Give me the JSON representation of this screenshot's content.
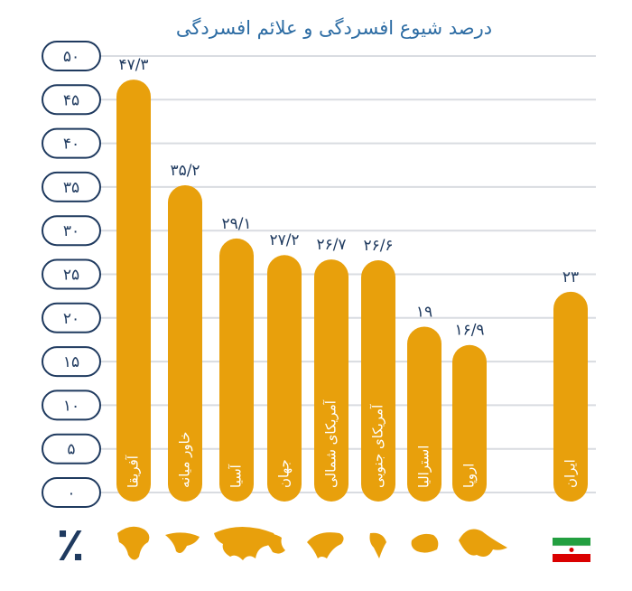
{
  "chart_data": {
    "type": "bar",
    "title": "درصد شیوع افسردگی و علائم افسردگی",
    "y_unit": "٪",
    "categories": [
      "آفریقا",
      "خاور میانه",
      "آسیا",
      "جهان",
      "آمریکای شمالی",
      "آمریکای جنوبی",
      "استرالیا",
      "اروپا",
      "ایران"
    ],
    "values": [
      47.3,
      35.2,
      29.1,
      27.2,
      26.7,
      26.6,
      19,
      16.9,
      23
    ],
    "value_labels": [
      "۴۷/۳",
      "۳۵/۲",
      "۲۹/۱",
      "۲۷/۲",
      "۲۶/۷",
      "۲۶/۶",
      "۱۹",
      "۱۶/۹",
      "۲۳"
    ],
    "color": "#e8a00c",
    "ylim": [
      0,
      50
    ],
    "yticks": [
      {
        "value": 0,
        "label": "۰"
      },
      {
        "value": 5,
        "label": "۵"
      },
      {
        "value": 10,
        "label": "۱۰"
      },
      {
        "value": 15,
        "label": "۱۵"
      },
      {
        "value": 20,
        "label": "۲۰"
      },
      {
        "value": 25,
        "label": "۲۵"
      },
      {
        "value": 30,
        "label": "۳۰"
      },
      {
        "value": 35,
        "label": "۳۵"
      },
      {
        "value": 40,
        "label": "۴۰"
      },
      {
        "value": 45,
        "label": "۴۵"
      },
      {
        "value": 50,
        "label": "۵۰"
      }
    ],
    "grid": true
  }
}
